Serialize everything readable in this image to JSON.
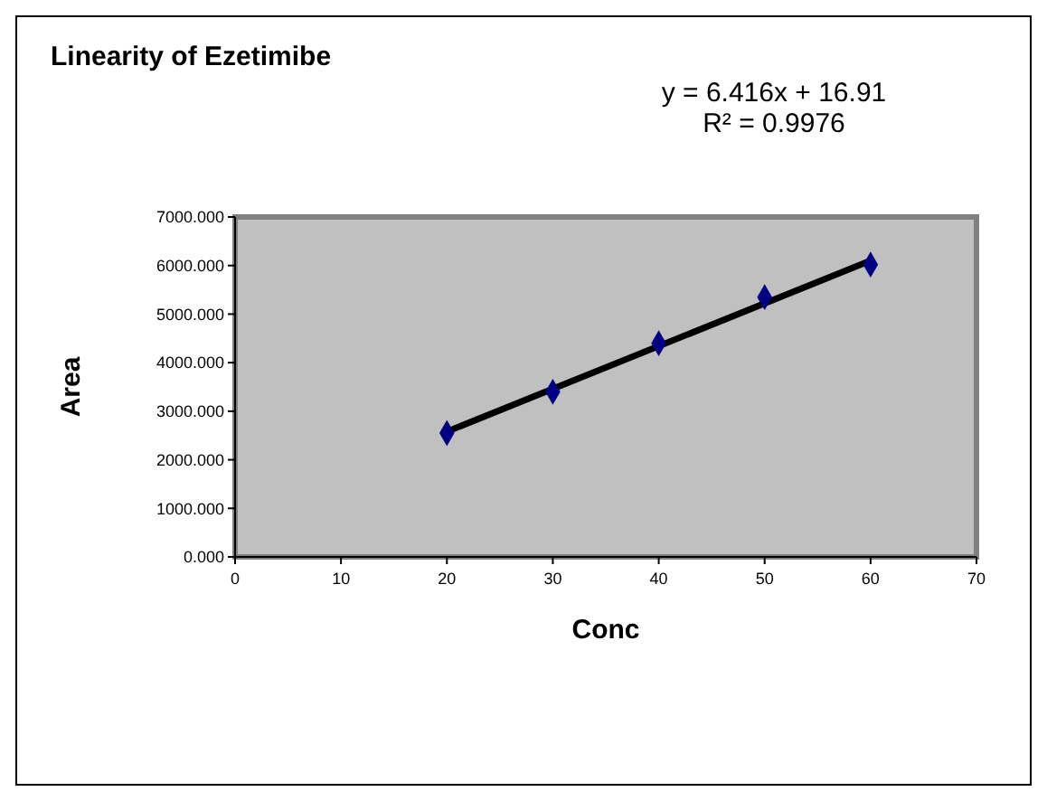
{
  "chart_data": {
    "type": "scatter",
    "title": "Linearity of Ezetimibe",
    "xlabel": "Conc",
    "ylabel": "Area",
    "annotations": [
      "y = 6.416x + 16.91",
      "R² = 0.9976"
    ],
    "xlim": [
      0,
      70
    ],
    "xticks": [
      0,
      10,
      20,
      30,
      40,
      50,
      60,
      70
    ],
    "ylim": [
      0,
      7000
    ],
    "yticks": [
      {
        "value": 0,
        "label": "0.000"
      },
      {
        "value": 1000,
        "label": "1000.000"
      },
      {
        "value": 2000,
        "label": "2000.000"
      },
      {
        "value": 3000,
        "label": "3000.000"
      },
      {
        "value": 4000,
        "label": "4000.000"
      },
      {
        "value": 5000,
        "label": "5000.000"
      },
      {
        "value": 6000,
        "label": "6000.000"
      },
      {
        "value": 7000,
        "label": "7000.000"
      }
    ],
    "series": [
      {
        "marker": "diamond",
        "color": "#000080",
        "x": [
          20,
          30,
          40,
          50,
          60
        ],
        "values": [
          2550,
          3400,
          4400,
          5350,
          6020
        ]
      },
      {
        "type": "line",
        "marker": "none",
        "color": "#000000",
        "x": [
          20,
          60
        ],
        "values": [
          2580,
          6100
        ]
      }
    ]
  }
}
